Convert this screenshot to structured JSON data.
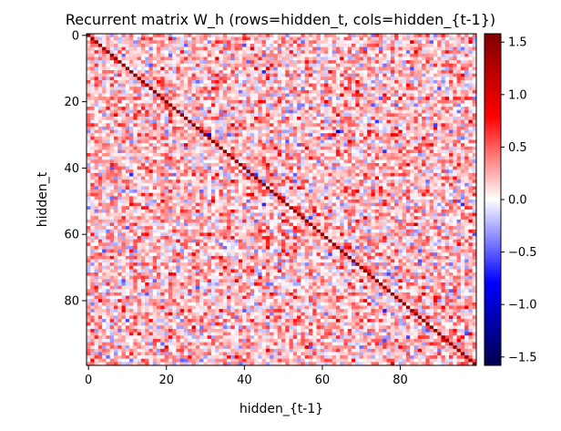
{
  "chart_data": {
    "type": "heatmap",
    "title": "Recurrent matrix W_h (rows=hidden_t, cols=hidden_{t-1})",
    "xlabel": "hidden_{t-1}",
    "ylabel": "hidden_t",
    "rows": 100,
    "cols": 100,
    "x_ticks": [
      0,
      20,
      40,
      60,
      80
    ],
    "x_tick_labels": [
      "0",
      "20",
      "40",
      "60",
      "80"
    ],
    "y_ticks": [
      0,
      20,
      40,
      60,
      80
    ],
    "y_tick_labels": [
      "0",
      "20",
      "40",
      "60",
      "80"
    ],
    "colormap": "seismic",
    "colormap_stops": [
      "#00004c",
      "#0000ff",
      "#ffffff",
      "#ff0000",
      "#7f0000"
    ],
    "vmin": -1.58,
    "vmax": 1.58,
    "colorbar_ticks": [
      -1.5,
      -1.0,
      -0.5,
      0.0,
      0.5,
      1.0,
      1.5
    ],
    "colorbar_tick_labels": [
      "−1.5",
      "−1.0",
      "−0.5",
      "0.0",
      "0.5",
      "1.0",
      "1.5"
    ],
    "diagonal_value": 1.45,
    "off_diagonal_pattern": "random values roughly in [-0.6, 0.8], mostly positive (light to medium red) with scattered light blue cells",
    "grid": false
  }
}
